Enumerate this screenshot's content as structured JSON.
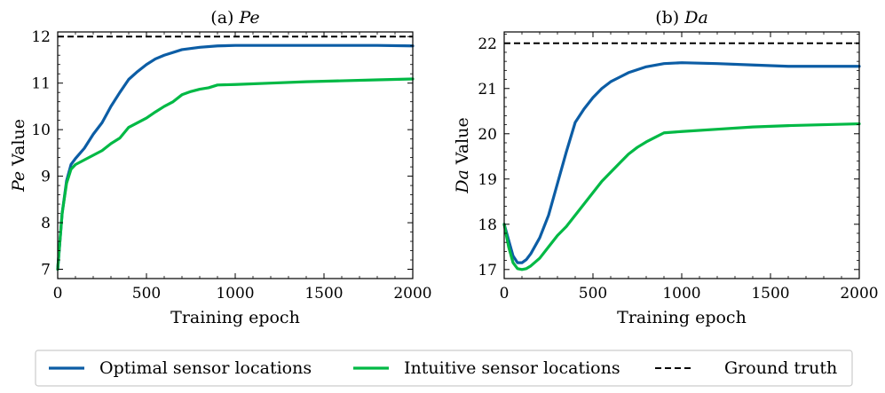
{
  "legend": {
    "items": [
      {
        "label": "Optimal sensor locations",
        "color": "#0c5da5",
        "style": "solid"
      },
      {
        "label": "Intuitive sensor locations",
        "color": "#00b945",
        "style": "solid"
      },
      {
        "label": "Ground truth",
        "color": "#000000",
        "style": "dashed"
      }
    ]
  },
  "chart_data": [
    {
      "type": "line",
      "title_prefix": "(a) ",
      "title_var": "Pe",
      "xlabel": "Training epoch",
      "ylabel_var": "Pe",
      "ylabel_suffix": " Value",
      "xlim": [
        0,
        2000
      ],
      "ylim": [
        6.8,
        12.1
      ],
      "xticks": [
        0,
        500,
        1000,
        1500,
        2000
      ],
      "yticks": [
        7,
        8,
        9,
        10,
        11,
        12
      ],
      "ground_truth": 12,
      "series": [
        {
          "name": "Optimal sensor locations",
          "color": "#0c5da5",
          "x": [
            0,
            25,
            50,
            75,
            100,
            150,
            200,
            250,
            300,
            350,
            400,
            450,
            500,
            550,
            600,
            700,
            800,
            900,
            1000,
            1200,
            1400,
            1600,
            1800,
            2000
          ],
          "y": [
            7.0,
            8.2,
            8.9,
            9.25,
            9.38,
            9.6,
            9.9,
            10.15,
            10.5,
            10.8,
            11.08,
            11.25,
            11.4,
            11.52,
            11.6,
            11.72,
            11.77,
            11.8,
            11.81,
            11.81,
            11.81,
            11.81,
            11.81,
            11.8
          ]
        },
        {
          "name": "Intuitive sensor locations",
          "color": "#00b945",
          "x": [
            0,
            25,
            50,
            75,
            100,
            150,
            200,
            250,
            300,
            350,
            400,
            450,
            500,
            550,
            600,
            650,
            700,
            750,
            800,
            850,
            900,
            1000,
            1200,
            1400,
            1600,
            1800,
            2000
          ],
          "y": [
            7.0,
            8.2,
            8.85,
            9.15,
            9.25,
            9.35,
            9.45,
            9.55,
            9.7,
            9.82,
            10.05,
            10.15,
            10.25,
            10.38,
            10.5,
            10.6,
            10.75,
            10.82,
            10.87,
            10.9,
            10.96,
            10.97,
            11.0,
            11.03,
            11.05,
            11.07,
            11.09
          ]
        }
      ]
    },
    {
      "type": "line",
      "title_prefix": "(b) ",
      "title_var": "Da",
      "xlabel": "Training epoch",
      "ylabel_var": "Da",
      "ylabel_suffix": " Value",
      "xlim": [
        0,
        2000
      ],
      "ylim": [
        16.8,
        22.25
      ],
      "xticks": [
        0,
        500,
        1000,
        1500,
        2000
      ],
      "yticks": [
        17,
        18,
        19,
        20,
        21,
        22
      ],
      "ground_truth": 22,
      "series": [
        {
          "name": "Optimal sensor locations",
          "color": "#0c5da5",
          "x": [
            0,
            25,
            50,
            75,
            100,
            125,
            150,
            200,
            250,
            300,
            350,
            400,
            450,
            500,
            550,
            600,
            650,
            700,
            800,
            900,
            1000,
            1100,
            1200,
            1400,
            1600,
            1800,
            2000
          ],
          "y": [
            18.0,
            17.65,
            17.3,
            17.15,
            17.15,
            17.22,
            17.35,
            17.7,
            18.2,
            18.9,
            19.6,
            20.25,
            20.55,
            20.8,
            21.0,
            21.15,
            21.25,
            21.35,
            21.48,
            21.55,
            21.57,
            21.56,
            21.55,
            21.52,
            21.49,
            21.49,
            21.49
          ]
        },
        {
          "name": "Intuitive sensor locations",
          "color": "#00b945",
          "x": [
            0,
            25,
            50,
            75,
            100,
            125,
            150,
            200,
            250,
            300,
            350,
            400,
            450,
            500,
            550,
            600,
            650,
            700,
            750,
            800,
            850,
            900,
            1000,
            1200,
            1400,
            1600,
            1800,
            2000
          ],
          "y": [
            18.0,
            17.5,
            17.15,
            17.02,
            17.0,
            17.02,
            17.08,
            17.25,
            17.5,
            17.75,
            17.95,
            18.2,
            18.45,
            18.7,
            18.95,
            19.15,
            19.35,
            19.55,
            19.7,
            19.82,
            19.92,
            20.02,
            20.05,
            20.1,
            20.15,
            20.18,
            20.2,
            20.22
          ]
        }
      ]
    }
  ]
}
